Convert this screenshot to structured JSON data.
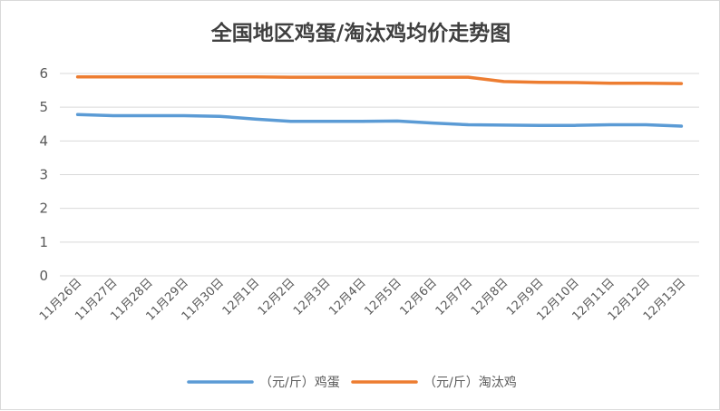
{
  "chart_data": {
    "type": "line",
    "title": "全国地区鸡蛋/淘汰鸡均价走势图",
    "categories": [
      "11月26日",
      "11月27日",
      "11月28日",
      "11月29日",
      "11月30日",
      "12月1日",
      "12月2日",
      "12月3日",
      "12月4日",
      "12月5日",
      "12月6日",
      "12月7日",
      "12月8日",
      "12月9日",
      "12月10日",
      "12月11日",
      "12月12日",
      "12月13日"
    ],
    "ylim": [
      0,
      6
    ],
    "yticks": [
      "0",
      "1",
      "2",
      "3",
      "4",
      "5",
      "6"
    ],
    "grid": true,
    "legend_position": "bottom",
    "series": [
      {
        "name": "（元/斤）鸡蛋",
        "color": "#5b9bd5",
        "values": [
          4.78,
          4.75,
          4.75,
          4.75,
          4.73,
          4.65,
          4.58,
          4.58,
          4.58,
          4.59,
          4.53,
          4.48,
          4.47,
          4.46,
          4.46,
          4.48,
          4.48,
          4.44
        ]
      },
      {
        "name": "（元/斤）淘汰鸡",
        "color": "#ed7d31",
        "values": [
          5.9,
          5.9,
          5.9,
          5.9,
          5.9,
          5.9,
          5.89,
          5.89,
          5.89,
          5.89,
          5.89,
          5.89,
          5.76,
          5.74,
          5.73,
          5.71,
          5.71,
          5.7
        ]
      }
    ]
  }
}
